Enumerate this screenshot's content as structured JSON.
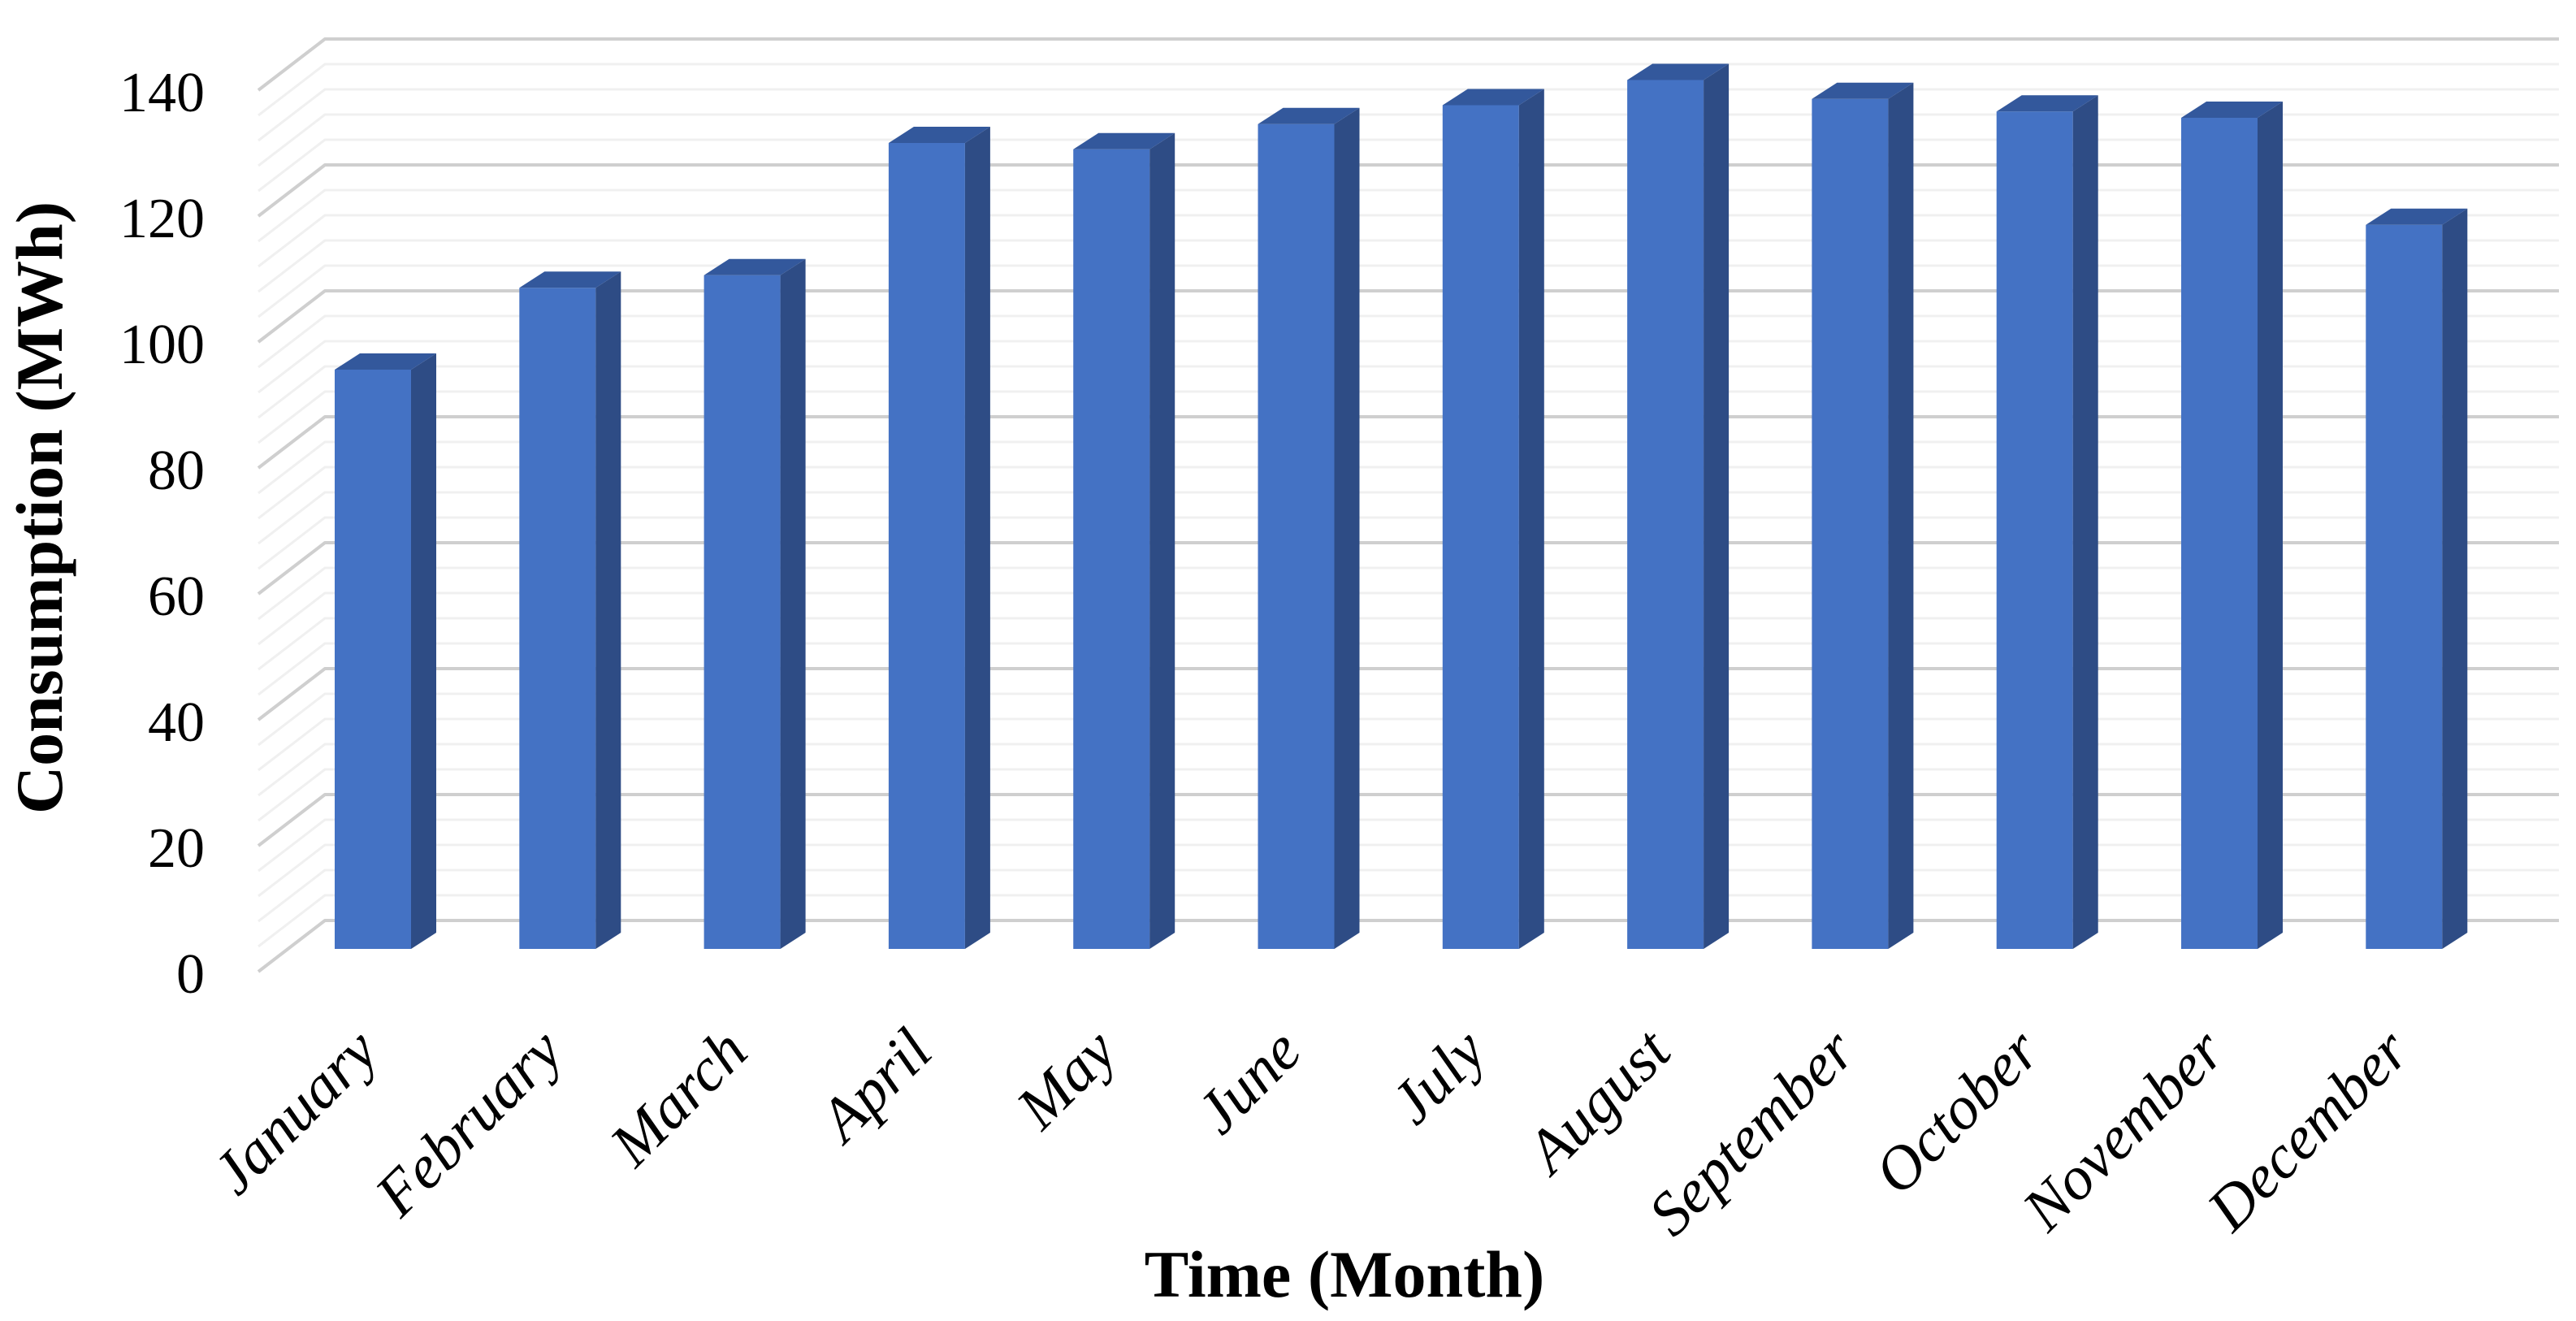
{
  "chart_data": {
    "type": "bar",
    "variant": "3d-column",
    "title": "",
    "xlabel": "Time (Month)",
    "ylabel": "Consumption (MWh)",
    "categories": [
      "January",
      "February",
      "March",
      "April",
      "May",
      "June",
      "July",
      "August",
      "September",
      "October",
      "November",
      "December"
    ],
    "values": [
      92,
      105,
      107,
      128,
      127,
      131,
      134,
      138,
      135,
      133,
      132,
      115
    ],
    "unit": "MWh",
    "ylim": [
      0,
      140
    ],
    "yticks": [
      0,
      20,
      40,
      60,
      80,
      100,
      120,
      140
    ],
    "ytick_step": 20,
    "yminor_step": 4,
    "grid": "major-and-minor-horizontal",
    "legend": "none",
    "colors": {
      "bar_front": "#4472C4",
      "bar_side": "#2E4C85",
      "bar_top": "#33589C",
      "grid_major": "#CFCFCF",
      "grid_minor": "#F0F0F0",
      "background": "#FFFFFF",
      "text": "#000000"
    }
  }
}
